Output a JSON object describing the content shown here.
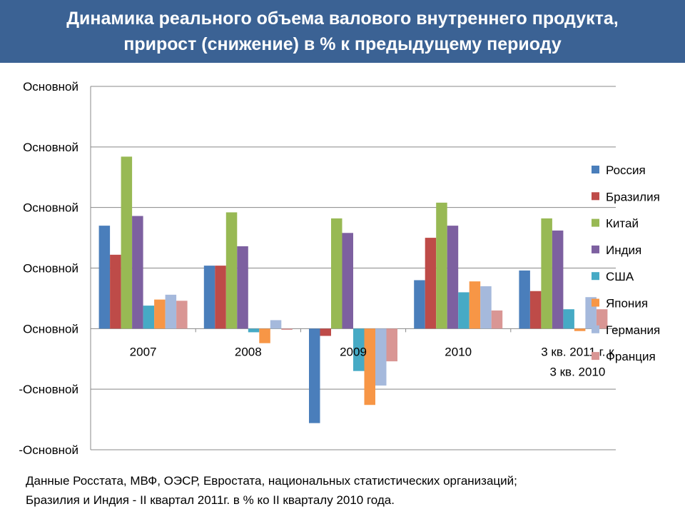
{
  "header": {
    "title_line1": "Динамика реального объема валового внутреннего продукта,",
    "title_line2": "прирост (снижение) в % к предыдущему периоду"
  },
  "footer": {
    "line1": "Данные Росстата, МВФ, ОЭСР, Евростата, национальных статистических организаций;",
    "line2": "Бразилия и Индия -  II квартал 2011г. в % ко II кварталу 2010 года."
  },
  "chart_data": {
    "type": "bar",
    "title": "",
    "xlabel": "",
    "ylabel": "",
    "ylim": [
      -10,
      20
    ],
    "y_ticks": [
      20,
      15,
      10,
      5,
      0,
      -5,
      -10
    ],
    "y_tick_labels": [
      "Основной",
      "Основной",
      "Основной",
      "Основной",
      "Основной",
      "-Основной",
      "-Основной"
    ],
    "grid": true,
    "legend_position": "right",
    "categories": [
      "2007",
      "2008",
      "2009",
      "2010",
      "3 кв. 2011 г. к 3 кв. 2010"
    ],
    "series": [
      {
        "name": "Россия",
        "color": "#4a7ebb",
        "values": [
          8.5,
          5.2,
          -7.8,
          4.0,
          4.8
        ]
      },
      {
        "name": "Бразилия",
        "color": "#be4b48",
        "values": [
          6.1,
          5.2,
          -0.6,
          7.5,
          3.1
        ]
      },
      {
        "name": "Китай",
        "color": "#98b954",
        "values": [
          14.2,
          9.6,
          9.1,
          10.4,
          9.1
        ]
      },
      {
        "name": "Индия",
        "color": "#7d60a0",
        "values": [
          9.3,
          6.8,
          7.9,
          8.5,
          8.1
        ]
      },
      {
        "name": "США",
        "color": "#46aac5",
        "values": [
          1.9,
          -0.3,
          -3.5,
          3.0,
          1.6
        ]
      },
      {
        "name": "Япония",
        "color": "#f79646",
        "values": [
          2.4,
          -1.2,
          -6.3,
          3.9,
          -0.2
        ]
      },
      {
        "name": "Германия",
        "color": "#a5b9dc",
        "values": [
          2.8,
          0.7,
          -4.7,
          3.5,
          2.6
        ]
      },
      {
        "name": "Франция",
        "color": "#d99694",
        "values": [
          2.3,
          -0.1,
          -2.7,
          1.5,
          1.6
        ]
      }
    ]
  }
}
